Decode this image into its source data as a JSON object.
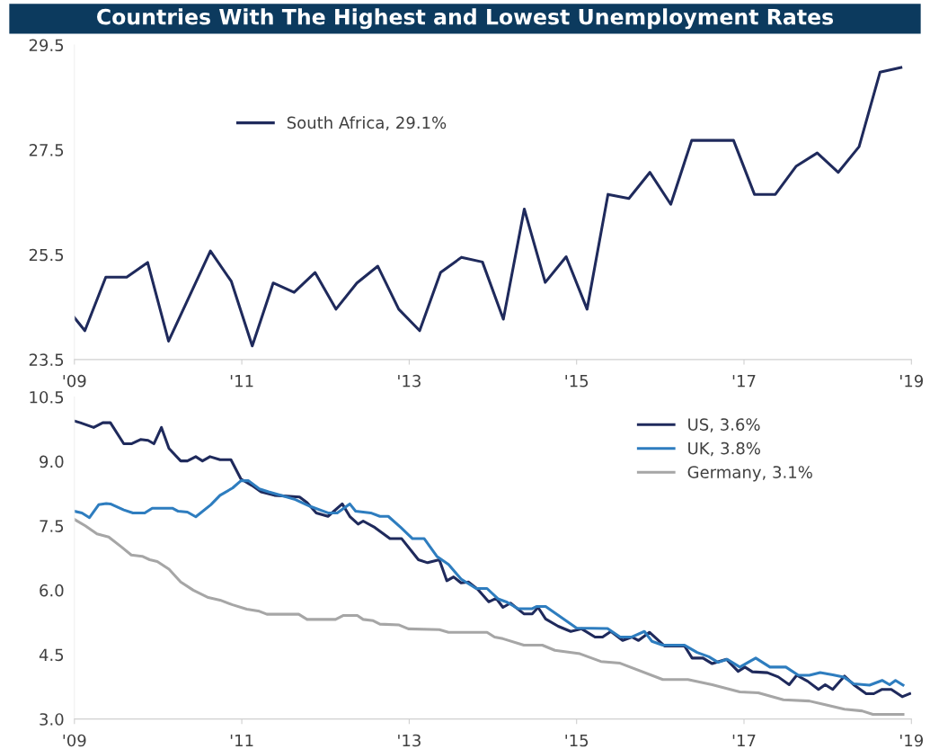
{
  "chart_data": [
    {
      "type": "line",
      "title": "Countries With The Highest and Lowest Unemployment Rates",
      "legend": "top",
      "xlim": [
        2009,
        2019
      ],
      "xticks": [
        {
          "value": 2009,
          "label": "'09"
        },
        {
          "value": 2011,
          "label": "'11"
        },
        {
          "value": 2013,
          "label": "'13"
        },
        {
          "value": 2015,
          "label": "'15"
        },
        {
          "value": 2017,
          "label": "'17"
        },
        {
          "value": 2019,
          "label": "'19"
        }
      ],
      "ylim": [
        23.5,
        29.5
      ],
      "yticks": [
        {
          "value": 23.5,
          "label": "23.5"
        },
        {
          "value": 25.5,
          "label": "25.5"
        },
        {
          "value": 27.5,
          "label": "27.5"
        },
        {
          "value": 29.5,
          "label": "29.5"
        }
      ],
      "series": [
        {
          "name": "South Africa, 29.1%",
          "color": "#1f2a5c",
          "x": [
            2009.0,
            2009.125,
            2009.375,
            2009.625,
            2009.875,
            2010.125,
            2010.625,
            2010.875,
            2011.125,
            2011.375,
            2011.625,
            2011.875,
            2012.125,
            2012.375,
            2012.625,
            2012.875,
            2013.125,
            2013.375,
            2013.625,
            2013.875,
            2014.125,
            2014.375,
            2014.625,
            2014.875,
            2015.125,
            2015.375,
            2015.625,
            2015.875,
            2016.125,
            2016.375,
            2016.625,
            2016.875,
            2017.125,
            2017.375,
            2017.625,
            2017.875,
            2018.125,
            2018.375,
            2018.625,
            2018.875
          ],
          "values": [
            24.3,
            24.05,
            25.07,
            25.07,
            25.35,
            23.85,
            25.57,
            24.99,
            23.76,
            24.96,
            24.78,
            25.16,
            24.46,
            24.96,
            25.28,
            24.46,
            24.05,
            25.16,
            25.45,
            25.36,
            24.27,
            26.37,
            24.97,
            25.46,
            24.46,
            26.65,
            26.57,
            27.07,
            26.46,
            27.68,
            27.68,
            27.68,
            26.65,
            26.65,
            27.19,
            27.44,
            27.07,
            27.56,
            28.98,
            29.07
          ]
        }
      ]
    },
    {
      "type": "line",
      "legend": "top right",
      "xlim": [
        2009,
        2019
      ],
      "xticks": [
        {
          "value": 2009,
          "label": "'09"
        },
        {
          "value": 2011,
          "label": "'11"
        },
        {
          "value": 2013,
          "label": "'13"
        },
        {
          "value": 2015,
          "label": "'15"
        },
        {
          "value": 2017,
          "label": "'17"
        },
        {
          "value": 2019,
          "label": "'19"
        }
      ],
      "ylim": [
        3.0,
        10.5
      ],
      "yticks": [
        {
          "value": 3.0,
          "label": "3.0"
        },
        {
          "value": 4.5,
          "label": "4.5"
        },
        {
          "value": 6.0,
          "label": "6.0"
        },
        {
          "value": 7.5,
          "label": "7.5"
        },
        {
          "value": 9.0,
          "label": "9.0"
        },
        {
          "value": 10.5,
          "label": "10.5"
        }
      ],
      "series": [
        {
          "name": "US, 3.6%",
          "color": "#1f2a5c",
          "x": [
            2009.0,
            2009.07,
            2009.23,
            2009.34,
            2009.43,
            2009.59,
            2009.68,
            2009.79,
            2009.88,
            2009.95,
            2010.04,
            2010.13,
            2010.27,
            2010.35,
            2010.45,
            2010.53,
            2010.62,
            2010.74,
            2010.87,
            2010.99,
            2011.12,
            2011.23,
            2011.39,
            2011.69,
            2011.78,
            2011.89,
            2012.03,
            2012.2,
            2012.29,
            2012.39,
            2012.45,
            2012.59,
            2012.77,
            2012.91,
            2013.11,
            2013.22,
            2013.36,
            2013.45,
            2013.53,
            2013.62,
            2013.71,
            2013.82,
            2013.95,
            2014.04,
            2014.12,
            2014.21,
            2014.37,
            2014.47,
            2014.54,
            2014.63,
            2014.78,
            2014.93,
            2015.06,
            2015.22,
            2015.31,
            2015.41,
            2015.55,
            2015.66,
            2015.74,
            2015.87,
            2016.05,
            2016.29,
            2016.38,
            2016.51,
            2016.62,
            2016.79,
            2016.93,
            2017.01,
            2017.1,
            2017.28,
            2017.41,
            2017.54,
            2017.63,
            2017.76,
            2017.89,
            2017.97,
            2018.06,
            2018.2,
            2018.31,
            2018.46,
            2018.55,
            2018.65,
            2018.76,
            2018.89,
            2018.98
          ],
          "values": [
            9.94,
            9.9,
            9.79,
            9.9,
            9.9,
            9.41,
            9.41,
            9.51,
            9.49,
            9.41,
            9.79,
            9.3,
            9.01,
            9.01,
            9.11,
            9.01,
            9.11,
            9.04,
            9.04,
            8.59,
            8.44,
            8.29,
            8.21,
            8.17,
            8.04,
            7.8,
            7.72,
            8.01,
            7.72,
            7.54,
            7.61,
            7.46,
            7.2,
            7.2,
            6.71,
            6.64,
            6.71,
            6.22,
            6.31,
            6.17,
            6.19,
            6.02,
            5.73,
            5.81,
            5.6,
            5.7,
            5.45,
            5.45,
            5.6,
            5.33,
            5.16,
            5.04,
            5.1,
            4.91,
            4.91,
            5.04,
            4.83,
            4.91,
            4.83,
            5.02,
            4.7,
            4.7,
            4.42,
            4.42,
            4.29,
            4.39,
            4.11,
            4.21,
            4.1,
            4.08,
            3.98,
            3.8,
            4.02,
            3.88,
            3.69,
            3.8,
            3.69,
            4.0,
            3.8,
            3.59,
            3.59,
            3.69,
            3.69,
            3.52,
            3.59
          ]
        },
        {
          "name": "UK, 3.8%",
          "color": "#2e7dbf",
          "x": [
            2009.0,
            2009.09,
            2009.18,
            2009.29,
            2009.38,
            2009.43,
            2009.59,
            2009.7,
            2009.84,
            2009.93,
            2010.17,
            2010.24,
            2010.35,
            2010.45,
            2010.63,
            2010.74,
            2010.89,
            2010.99,
            2011.08,
            2011.21,
            2011.32,
            2011.5,
            2011.64,
            2011.82,
            2012.03,
            2012.14,
            2012.29,
            2012.36,
            2012.54,
            2012.65,
            2012.75,
            2012.9,
            2013.04,
            2013.18,
            2013.33,
            2013.47,
            2013.62,
            2013.8,
            2013.93,
            2014.06,
            2014.17,
            2014.3,
            2014.47,
            2014.52,
            2014.63,
            2015.0,
            2015.37,
            2015.52,
            2015.66,
            2015.81,
            2015.9,
            2016.03,
            2016.29,
            2016.44,
            2016.58,
            2016.69,
            2016.8,
            2016.95,
            2017.14,
            2017.31,
            2017.5,
            2017.65,
            2017.78,
            2017.91,
            2018.06,
            2018.19,
            2018.31,
            2018.5,
            2018.65,
            2018.74,
            2018.81,
            2018.9
          ],
          "values": [
            7.84,
            7.8,
            7.69,
            7.99,
            8.02,
            8.01,
            7.87,
            7.8,
            7.8,
            7.91,
            7.91,
            7.84,
            7.82,
            7.71,
            7.99,
            8.21,
            8.38,
            8.55,
            8.55,
            8.36,
            8.29,
            8.19,
            8.11,
            7.95,
            7.8,
            7.8,
            8.01,
            7.84,
            7.8,
            7.72,
            7.72,
            7.46,
            7.2,
            7.2,
            6.79,
            6.6,
            6.26,
            6.04,
            6.04,
            5.8,
            5.72,
            5.57,
            5.57,
            5.62,
            5.62,
            5.12,
            5.11,
            4.91,
            4.91,
            5.04,
            4.81,
            4.72,
            4.72,
            4.55,
            4.45,
            4.32,
            4.39,
            4.21,
            4.42,
            4.21,
            4.21,
            4.02,
            4.02,
            4.08,
            4.03,
            3.98,
            3.82,
            3.79,
            3.9,
            3.8,
            3.9,
            3.79
          ]
        },
        {
          "name": "Germany, 3.1%",
          "color": "#a6a6a6",
          "x": [
            2009.0,
            2009.13,
            2009.27,
            2009.41,
            2009.56,
            2009.68,
            2009.81,
            2009.9,
            2009.99,
            2010.13,
            2010.27,
            2010.42,
            2010.6,
            2010.74,
            2010.89,
            2011.06,
            2011.21,
            2011.3,
            2011.68,
            2011.78,
            2012.12,
            2012.21,
            2012.38,
            2012.45,
            2012.57,
            2012.65,
            2012.88,
            2012.99,
            2013.36,
            2013.47,
            2013.93,
            2014.02,
            2014.12,
            2014.37,
            2014.59,
            2014.74,
            2015.04,
            2015.29,
            2015.52,
            2016.03,
            2016.33,
            2016.62,
            2016.95,
            2017.17,
            2017.47,
            2017.78,
            2017.96,
            2018.2,
            2018.41,
            2018.54,
            2018.9
          ],
          "values": [
            7.65,
            7.5,
            7.31,
            7.24,
            7.01,
            6.82,
            6.79,
            6.71,
            6.67,
            6.49,
            6.19,
            6.0,
            5.83,
            5.77,
            5.66,
            5.56,
            5.51,
            5.44,
            5.44,
            5.32,
            5.32,
            5.41,
            5.41,
            5.32,
            5.29,
            5.21,
            5.19,
            5.1,
            5.08,
            5.02,
            5.02,
            4.91,
            4.87,
            4.72,
            4.72,
            4.6,
            4.52,
            4.34,
            4.3,
            3.92,
            3.92,
            3.8,
            3.63,
            3.61,
            3.45,
            3.42,
            3.34,
            3.23,
            3.19,
            3.11,
            3.11
          ]
        }
      ]
    }
  ]
}
